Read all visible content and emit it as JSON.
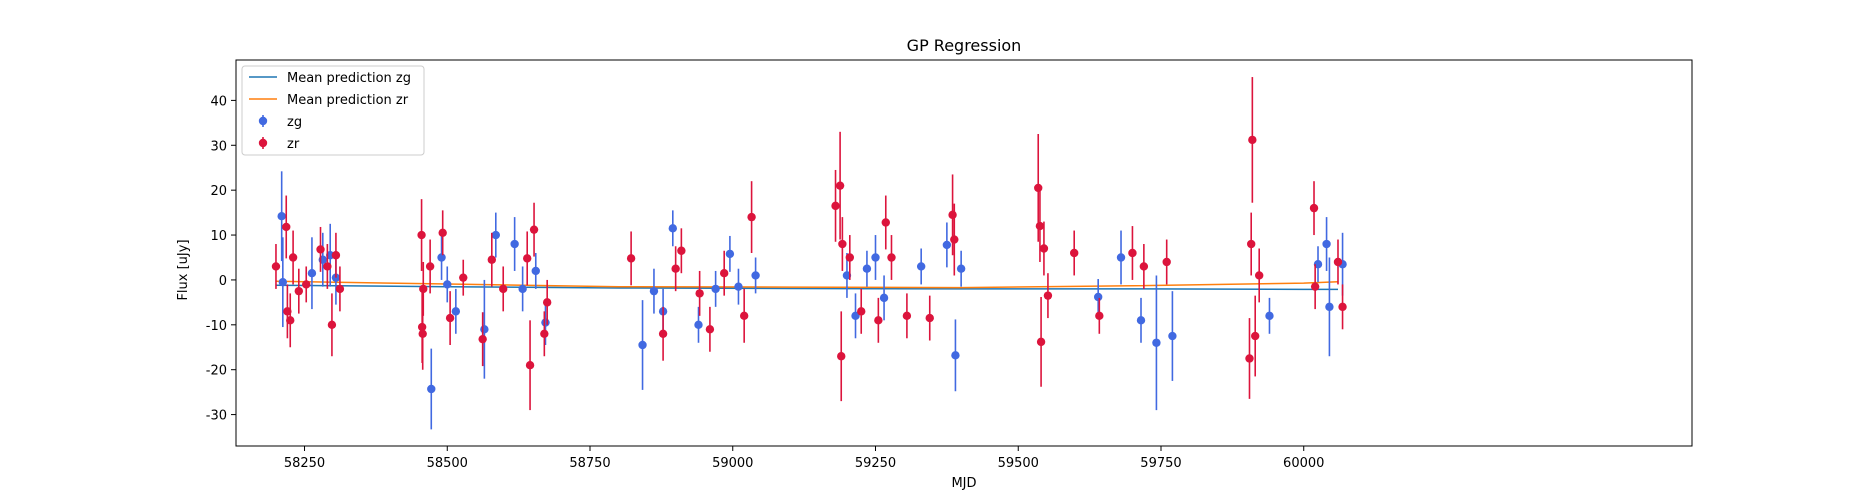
{
  "chart_data": {
    "type": "scatter",
    "title": "GP Regression",
    "xlabel": "MJD",
    "ylabel": "Flux [uJy]",
    "xlim": [
      58130,
      60680
    ],
    "ylim": [
      -37,
      49
    ],
    "xticks": [
      58250,
      58500,
      58750,
      59000,
      59250,
      59500,
      59750,
      60000
    ],
    "yticks": [
      -30,
      -20,
      -10,
      0,
      10,
      20,
      30,
      40
    ],
    "grid": false,
    "legend_position": "top-left",
    "series": [
      {
        "name": "Mean prediction zg",
        "kind": "line",
        "color": "#1f77b4",
        "x": [
          58200,
          58500,
          58800,
          59100,
          59400,
          59700,
          60000,
          60060
        ],
        "y": [
          -1.2,
          -1.5,
          -1.8,
          -1.9,
          -2.0,
          -2.0,
          -2.1,
          -2.1
        ]
      },
      {
        "name": "Mean prediction zr",
        "kind": "line",
        "color": "#ff7f0e",
        "x": [
          58200,
          58500,
          58800,
          59100,
          59400,
          59700,
          60000,
          60060
        ],
        "y": [
          -0.3,
          -0.9,
          -1.5,
          -1.6,
          -1.7,
          -1.3,
          -0.7,
          -0.4
        ]
      },
      {
        "name": "zg",
        "kind": "errorbar",
        "color": "#4169e1",
        "points": [
          {
            "x": 58210,
            "y": 14.2,
            "err": 10
          },
          {
            "x": 58212,
            "y": -0.5,
            "err": 10
          },
          {
            "x": 58263,
            "y": 1.5,
            "err": 8
          },
          {
            "x": 58282,
            "y": 4.5,
            "err": 6
          },
          {
            "x": 58295,
            "y": 5.5,
            "err": 7
          },
          {
            "x": 58305,
            "y": 0.5,
            "err": 6
          },
          {
            "x": 58472,
            "y": -24.3,
            "err": 9
          },
          {
            "x": 58490,
            "y": 5.0,
            "err": 5
          },
          {
            "x": 58500,
            "y": -1.0,
            "err": 4
          },
          {
            "x": 58515,
            "y": -7.0,
            "err": 5
          },
          {
            "x": 58565,
            "y": -11.0,
            "err": 11
          },
          {
            "x": 58585,
            "y": 10.0,
            "err": 5
          },
          {
            "x": 58618,
            "y": 8.0,
            "err": 6
          },
          {
            "x": 58632,
            "y": -2.0,
            "err": 5
          },
          {
            "x": 58655,
            "y": 2.0,
            "err": 4
          },
          {
            "x": 58672,
            "y": -9.5,
            "err": 5
          },
          {
            "x": 58842,
            "y": -14.5,
            "err": 10
          },
          {
            "x": 58862,
            "y": -2.5,
            "err": 5
          },
          {
            "x": 58878,
            "y": -7.0,
            "err": 5
          },
          {
            "x": 58895,
            "y": 11.5,
            "err": 4
          },
          {
            "x": 58940,
            "y": -10.0,
            "err": 4
          },
          {
            "x": 58970,
            "y": -2.0,
            "err": 4
          },
          {
            "x": 58995,
            "y": 5.8,
            "err": 4
          },
          {
            "x": 59010,
            "y": -1.5,
            "err": 4
          },
          {
            "x": 59040,
            "y": 1.0,
            "err": 4
          },
          {
            "x": 59200,
            "y": 1.0,
            "err": 5
          },
          {
            "x": 59215,
            "y": -8.0,
            "err": 5
          },
          {
            "x": 59235,
            "y": 2.5,
            "err": 4
          },
          {
            "x": 59250,
            "y": 5.0,
            "err": 5
          },
          {
            "x": 59265,
            "y": -4.0,
            "err": 5
          },
          {
            "x": 59330,
            "y": 3.0,
            "err": 4
          },
          {
            "x": 59375,
            "y": 7.8,
            "err": 5
          },
          {
            "x": 59390,
            "y": -16.8,
            "err": 8
          },
          {
            "x": 59400,
            "y": 2.5,
            "err": 4
          },
          {
            "x": 59640,
            "y": -3.8,
            "err": 4
          },
          {
            "x": 59680,
            "y": 5.0,
            "err": 6
          },
          {
            "x": 59715,
            "y": -9.0,
            "err": 5
          },
          {
            "x": 59742,
            "y": -14.0,
            "err": 15
          },
          {
            "x": 59770,
            "y": -12.5,
            "err": 10
          },
          {
            "x": 59940,
            "y": -8.0,
            "err": 4
          },
          {
            "x": 60025,
            "y": 3.5,
            "err": 4
          },
          {
            "x": 60040,
            "y": 8.0,
            "err": 6
          },
          {
            "x": 60045,
            "y": -6.0,
            "err": 11
          },
          {
            "x": 60068,
            "y": 3.5,
            "err": 7
          }
        ]
      },
      {
        "name": "zr",
        "kind": "errorbar",
        "color": "#dc143c",
        "points": [
          {
            "x": 58200,
            "y": 3.0,
            "err": 5
          },
          {
            "x": 58218,
            "y": 11.8,
            "err": 7
          },
          {
            "x": 58220,
            "y": -7.0,
            "err": 6
          },
          {
            "x": 58225,
            "y": -9.0,
            "err": 6
          },
          {
            "x": 58230,
            "y": 5.0,
            "err": 6
          },
          {
            "x": 58240,
            "y": -2.5,
            "err": 5
          },
          {
            "x": 58253,
            "y": -1.0,
            "err": 4
          },
          {
            "x": 58278,
            "y": 6.8,
            "err": 5
          },
          {
            "x": 58290,
            "y": 3.0,
            "err": 5
          },
          {
            "x": 58298,
            "y": -10.0,
            "err": 7
          },
          {
            "x": 58305,
            "y": 5.5,
            "err": 5
          },
          {
            "x": 58312,
            "y": -2.0,
            "err": 5
          },
          {
            "x": 58455,
            "y": 10.0,
            "err": 8
          },
          {
            "x": 58456,
            "y": -10.5,
            "err": 8
          },
          {
            "x": 58457,
            "y": -12.0,
            "err": 8
          },
          {
            "x": 58458,
            "y": -2.0,
            "err": 6
          },
          {
            "x": 58470,
            "y": 3.0,
            "err": 6
          },
          {
            "x": 58492,
            "y": 10.5,
            "err": 5
          },
          {
            "x": 58505,
            "y": -8.5,
            "err": 6
          },
          {
            "x": 58528,
            "y": 0.5,
            "err": 4
          },
          {
            "x": 58562,
            "y": -13.2,
            "err": 6
          },
          {
            "x": 58578,
            "y": 4.5,
            "err": 6
          },
          {
            "x": 58598,
            "y": -2.0,
            "err": 5
          },
          {
            "x": 58640,
            "y": 4.8,
            "err": 6
          },
          {
            "x": 58645,
            "y": -19.0,
            "err": 10
          },
          {
            "x": 58652,
            "y": 11.2,
            "err": 6
          },
          {
            "x": 58670,
            "y": -12.0,
            "err": 5
          },
          {
            "x": 58675,
            "y": -5.0,
            "err": 5
          },
          {
            "x": 58822,
            "y": 4.8,
            "err": 6
          },
          {
            "x": 58878,
            "y": -12.0,
            "err": 6
          },
          {
            "x": 58900,
            "y": 2.5,
            "err": 5
          },
          {
            "x": 58910,
            "y": 6.5,
            "err": 5
          },
          {
            "x": 58942,
            "y": -3.0,
            "err": 5
          },
          {
            "x": 58960,
            "y": -11.0,
            "err": 5
          },
          {
            "x": 58985,
            "y": 1.5,
            "err": 5
          },
          {
            "x": 59020,
            "y": -8.0,
            "err": 6
          },
          {
            "x": 59033,
            "y": 14.0,
            "err": 8
          },
          {
            "x": 59180,
            "y": 16.5,
            "err": 8
          },
          {
            "x": 59188,
            "y": 21.0,
            "err": 12
          },
          {
            "x": 59190,
            "y": -17.0,
            "err": 10
          },
          {
            "x": 59192,
            "y": 8.0,
            "err": 6
          },
          {
            "x": 59205,
            "y": 5.0,
            "err": 5
          },
          {
            "x": 59225,
            "y": -7.0,
            "err": 5
          },
          {
            "x": 59255,
            "y": -9.0,
            "err": 5
          },
          {
            "x": 59268,
            "y": 12.8,
            "err": 6
          },
          {
            "x": 59278,
            "y": 5.0,
            "err": 5
          },
          {
            "x": 59305,
            "y": -8.0,
            "err": 5
          },
          {
            "x": 59345,
            "y": -8.5,
            "err": 5
          },
          {
            "x": 59385,
            "y": 14.5,
            "err": 9
          },
          {
            "x": 59388,
            "y": 9.0,
            "err": 8
          },
          {
            "x": 59535,
            "y": 20.5,
            "err": 12
          },
          {
            "x": 59538,
            "y": 12.0,
            "err": 8
          },
          {
            "x": 59540,
            "y": -13.8,
            "err": 10
          },
          {
            "x": 59545,
            "y": 7.0,
            "err": 6
          },
          {
            "x": 59552,
            "y": -3.5,
            "err": 5
          },
          {
            "x": 59598,
            "y": 6.0,
            "err": 5
          },
          {
            "x": 59642,
            "y": -8.0,
            "err": 4
          },
          {
            "x": 59700,
            "y": 6.0,
            "err": 6
          },
          {
            "x": 59720,
            "y": 3.0,
            "err": 5
          },
          {
            "x": 59760,
            "y": 4.0,
            "err": 5
          },
          {
            "x": 59905,
            "y": -17.5,
            "err": 9
          },
          {
            "x": 59908,
            "y": 8.0,
            "err": 7
          },
          {
            "x": 59910,
            "y": 31.2,
            "err": 14
          },
          {
            "x": 59915,
            "y": -12.5,
            "err": 9
          },
          {
            "x": 59922,
            "y": 1.0,
            "err": 6
          },
          {
            "x": 60018,
            "y": 16.0,
            "err": 6
          },
          {
            "x": 60020,
            "y": -1.5,
            "err": 5
          },
          {
            "x": 60060,
            "y": 4.0,
            "err": 5
          },
          {
            "x": 60068,
            "y": -6.0,
            "err": 5
          }
        ]
      }
    ]
  }
}
